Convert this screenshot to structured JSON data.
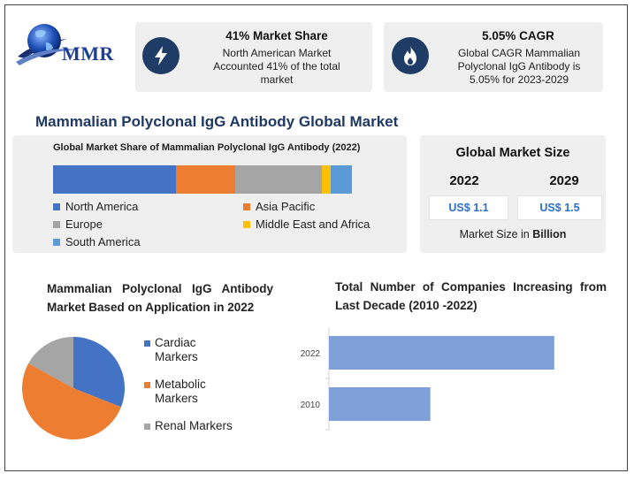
{
  "logo": {
    "text": "MMR"
  },
  "stat_cards": [
    {
      "title": "41% Market Share",
      "text": "North American Market Accounted 41% of the total market",
      "icon": "lightning-icon"
    },
    {
      "title": "5.05% CAGR",
      "text": "Global CAGR Mammalian Polyclonal IgG Antibody is 5.05% for 2023-2029",
      "icon": "flame-icon"
    }
  ],
  "main_title": "Mammalian Polyclonal IgG Antibody Global Market",
  "market_size": {
    "title": "Global Market Size",
    "years": [
      {
        "year": "2022",
        "value": "US$ 1.1"
      },
      {
        "year": "2029",
        "value": "US$ 1.5"
      }
    ],
    "note_prefix": "Market Size in ",
    "note_unit": "Billion"
  },
  "colors": {
    "north_america": "#4472c4",
    "asia_pacific": "#ed7d31",
    "europe": "#a5a5a5",
    "mea": "#ffc000",
    "south_america": "#5b9bd5",
    "companies_bar": "#7f9fd8"
  },
  "chart_data": [
    {
      "type": "bar",
      "orientation": "horizontal-stacked",
      "title": "Global Market Share of Mammalian Polyclonal IgG Antibody (2022)",
      "unit": "percent",
      "series": [
        {
          "name": "North America",
          "value": 41,
          "color": "#4472c4"
        },
        {
          "name": "Asia Pacific",
          "value": 20,
          "color": "#ed7d31"
        },
        {
          "name": "Europe",
          "value": 29,
          "color": "#a5a5a5"
        },
        {
          "name": "Middle East and Africa",
          "value": 3,
          "color": "#ffc000"
        },
        {
          "name": "South America",
          "value": 7,
          "color": "#5b9bd5"
        }
      ],
      "legend_order": [
        "North America",
        "Asia Pacific",
        "Europe",
        "Middle East and Africa",
        "South America"
      ]
    },
    {
      "type": "pie",
      "title": "Mammalian Polyclonal IgG Antibody Market Based on Application in 2022",
      "slices": [
        {
          "name": "Cardiac Markers",
          "value": 31,
          "color": "#4472c4"
        },
        {
          "name": "Metabolic Markers",
          "value": 52,
          "color": "#ed7d31"
        },
        {
          "name": "Renal Markers",
          "value": 17,
          "color": "#a5a5a5"
        }
      ]
    },
    {
      "type": "bar",
      "orientation": "horizontal",
      "title": "Total Number of Companies Increasing from Last Decade (2010 -2022)",
      "categories": [
        "2022",
        "2010"
      ],
      "values": [
        100,
        45
      ],
      "xlim": [
        0,
        115
      ],
      "grid": false,
      "color": "#7f9fd8"
    }
  ]
}
